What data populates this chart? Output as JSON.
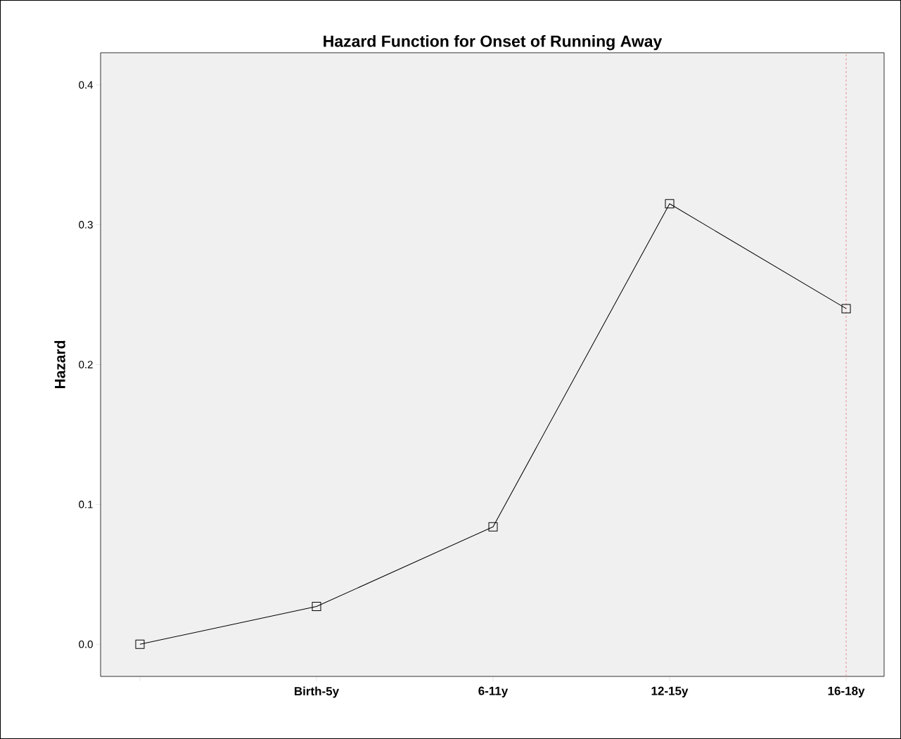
{
  "chart_data": {
    "type": "line",
    "title": "Hazard Function for Onset of Running Away",
    "ylabel": "Hazard",
    "categories": [
      null,
      "Birth-5y",
      "6-11y",
      "12-15y",
      "16-18y"
    ],
    "series": [
      {
        "color": "#000000",
        "values": [
          0.0,
          0.027,
          0.084,
          0.315,
          0.24
        ]
      }
    ],
    "ylim": [
      -0.023,
      0.423
    ],
    "yticks": [
      {
        "value": 0,
        "label": "0.0"
      },
      0.1,
      0.2,
      0.3,
      0.4
    ],
    "marker": "square",
    "line_style": "solid",
    "ref_lines": [
      {
        "axis": "x",
        "value": "16-18y",
        "color": "#e8a0a0",
        "line_style": "dashed"
      }
    ]
  }
}
